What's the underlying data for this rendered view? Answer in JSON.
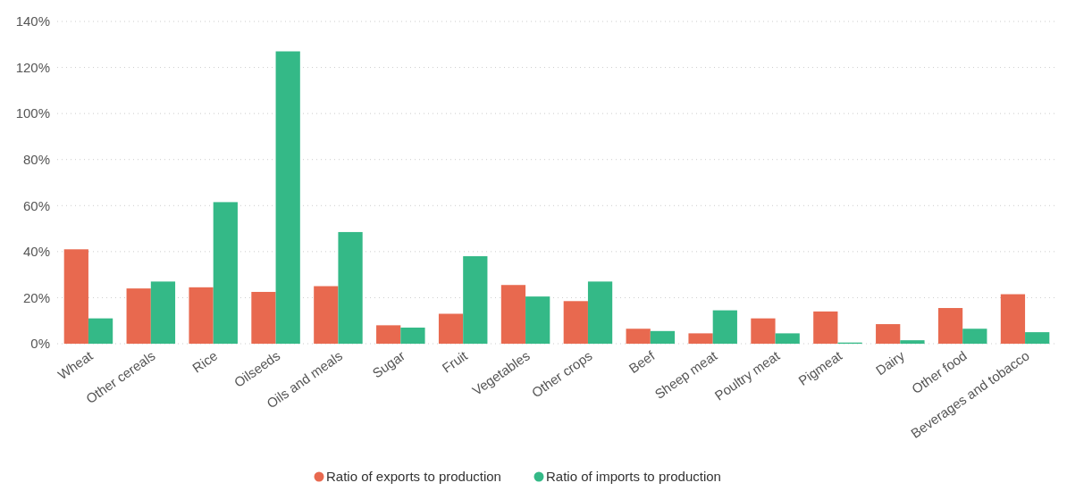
{
  "chart_data": {
    "type": "bar",
    "categories": [
      "Wheat",
      "Other cereals",
      "Rice",
      "Oilseeds",
      "Oils and meals",
      "Sugar",
      "Fruit",
      "Vegetables",
      "Other crops",
      "Beef",
      "Sheep meat",
      "Poultry meat",
      "Pigmeat",
      "Dairy",
      "Other food",
      "Beverages and tobacco"
    ],
    "series": [
      {
        "name": "Ratio of exports to production",
        "color": "#e8694f",
        "values": [
          41,
          24,
          24.5,
          22.5,
          25,
          8,
          13,
          25.5,
          18.5,
          6.5,
          4.5,
          11,
          14,
          8.5,
          15.5,
          21.5
        ]
      },
      {
        "name": "Ratio of imports to production",
        "color": "#34b987",
        "values": [
          11,
          27,
          61.5,
          127,
          48.5,
          7,
          38,
          20.5,
          27,
          5.5,
          14.5,
          4.5,
          0.5,
          1.5,
          6.5,
          5
        ]
      }
    ],
    "ylim": [
      0,
      140
    ],
    "yticks": [
      {
        "value": 0,
        "label": "0%"
      },
      {
        "value": 20,
        "label": "20%"
      },
      {
        "value": 40,
        "label": "40%"
      },
      {
        "value": 60,
        "label": "60%"
      },
      {
        "value": 80,
        "label": "80%"
      },
      {
        "value": 100,
        "label": "100%"
      },
      {
        "value": 120,
        "label": "120%"
      },
      {
        "value": 140,
        "label": "140%"
      }
    ],
    "grid": "y",
    "legend": "bottom"
  }
}
